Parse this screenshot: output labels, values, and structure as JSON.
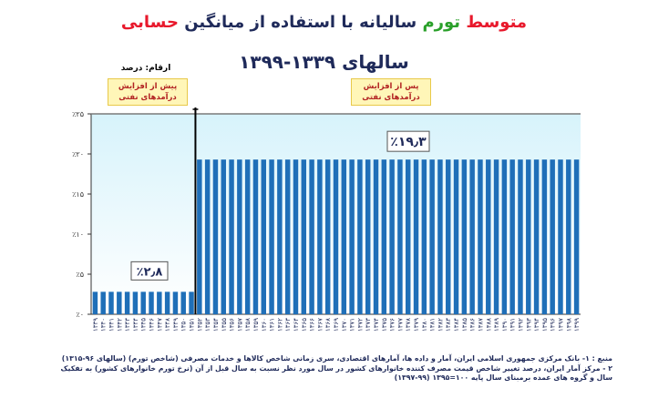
{
  "title": {
    "part1": "متوسط",
    "part2": "تورم",
    "part3": "سالیانه با استفاده از میانگین",
    "part4": "حسابی",
    "line2": "سالهای ۱۳۳۹-۱۳۹۹"
  },
  "unit_note": "ارقام: درصد",
  "period_before": "پیش از افزایش درآمدهای نفتی",
  "period_after": "پس از افزایش درآمدهای نفتی",
  "source_lines": [
    "منبع : ۱- بانک مرکزی جمهوری اسلامی ایران، آمار و داده ها، آمارهای اقتصادی، سری زمانی شاخص کالاها و خدمات مصرفی (شاخص تورم) (سالهای ۹۶-۱۳۱۵)",
    "۲ - مرکز آمار ایران، درصد تغییر شاخص قیمت مصرف کننده خانوارهای کشور در سال مورد نظر نسبت به سال قبل از آن (نرخ تورم خانوارهای کشور) به تفکیک",
    "سال و گروه های عمده برمبنای سال پایه ۱۰۰=۱۳۹۵ (۹۹-۱۳۹۷)"
  ],
  "colors": {
    "title_red": "#e8192c",
    "title_green": "#2aa02a",
    "title_blue": "#1f2a5a",
    "bar": "#1f6fb8",
    "bg_top": "#d7f3fb",
    "bg_bottom": "#ffffff"
  },
  "chart_data": {
    "type": "bar",
    "categories": [
      "۱۳۳۹",
      "۱۳۴۰",
      "۱۳۴۱",
      "۱۳۴۲",
      "۱۳۴۳",
      "۱۳۴۴",
      "۱۳۴۵",
      "۱۳۴۶",
      "۱۳۴۷",
      "۱۳۴۸",
      "۱۳۴۹",
      "۱۳۵۰",
      "۱۳۵۱",
      "۱۳۵۲",
      "۱۳۵۳",
      "۱۳۵۴",
      "۱۳۵۵",
      "۱۳۵۶",
      "۱۳۵۷",
      "۱۳۵۸",
      "۱۳۵۹",
      "۱۳۶۰",
      "۱۳۶۱",
      "۱۳۶۲",
      "۱۳۶۳",
      "۱۳۶۴",
      "۱۳۶۵",
      "۱۳۶۶",
      "۱۳۶۷",
      "۱۳۶۸",
      "۱۳۶۹",
      "۱۳۷۰",
      "۱۳۷۱",
      "۱۳۷۲",
      "۱۳۷۳",
      "۱۳۷۴",
      "۱۳۷۵",
      "۱۳۷۶",
      "۱۳۷۷",
      "۱۳۷۸",
      "۱۳۷۹",
      "۱۳۸۰",
      "۱۳۸۱",
      "۱۳۸۲",
      "۱۳۸۳",
      "۱۳۸۴",
      "۱۳۸۵",
      "۱۳۸۶",
      "۱۳۸۷",
      "۱۳۸۸",
      "۱۳۸۹",
      "۱۳۹۰",
      "۱۳۹۱",
      "۱۳۹۲",
      "۱۳۹۳",
      "۱۳۹۴",
      "۱۳۹۵",
      "۱۳۹۶",
      "۱۳۹۷",
      "۱۳۹۸",
      "۱۳۹۹"
    ],
    "values": [
      2.8,
      2.8,
      2.8,
      2.8,
      2.8,
      2.8,
      2.8,
      2.8,
      2.8,
      2.8,
      2.8,
      2.8,
      2.8,
      19.3,
      19.3,
      19.3,
      19.3,
      19.3,
      19.3,
      19.3,
      19.3,
      19.3,
      19.3,
      19.3,
      19.3,
      19.3,
      19.3,
      19.3,
      19.3,
      19.3,
      19.3,
      19.3,
      19.3,
      19.3,
      19.3,
      19.3,
      19.3,
      19.3,
      19.3,
      19.3,
      19.3,
      19.3,
      19.3,
      19.3,
      19.3,
      19.3,
      19.3,
      19.3,
      19.3,
      19.3,
      19.3,
      19.3,
      19.3,
      19.3,
      19.3,
      19.3,
      19.3,
      19.3,
      19.3,
      19.3,
      19.3
    ],
    "yticks": [
      "٪۰",
      "٪۵",
      "٪۱۰",
      "٪۱۵",
      "٪۲۰",
      "٪۲۵"
    ],
    "ylim": [
      0,
      25
    ],
    "annotations": [
      {
        "text": "٪۲٫۸",
        "value": 2.8
      },
      {
        "text": "٪۱۹٫۳",
        "value": 19.3
      }
    ],
    "split_after_category": "۱۳۵۱",
    "grid": false
  }
}
